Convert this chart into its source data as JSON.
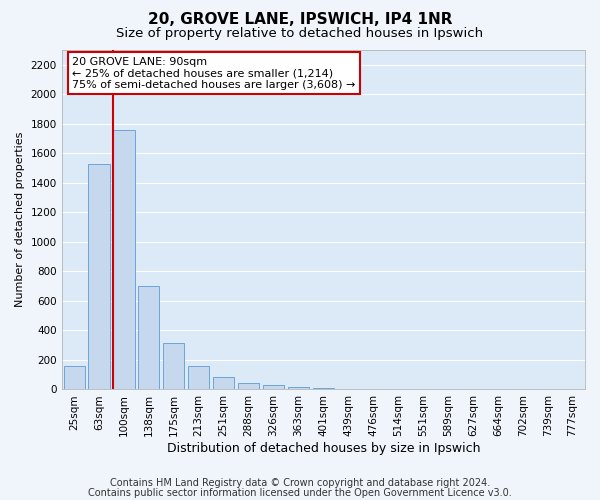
{
  "title1": "20, GROVE LANE, IPSWICH, IP4 1NR",
  "title2": "Size of property relative to detached houses in Ipswich",
  "xlabel": "Distribution of detached houses by size in Ipswich",
  "ylabel": "Number of detached properties",
  "categories": [
    "25sqm",
    "63sqm",
    "100sqm",
    "138sqm",
    "175sqm",
    "213sqm",
    "251sqm",
    "288sqm",
    "326sqm",
    "363sqm",
    "401sqm",
    "439sqm",
    "476sqm",
    "514sqm",
    "551sqm",
    "589sqm",
    "627sqm",
    "664sqm",
    "702sqm",
    "739sqm",
    "777sqm"
  ],
  "values": [
    160,
    1530,
    1760,
    700,
    315,
    160,
    85,
    45,
    30,
    18,
    12,
    5,
    3,
    2,
    1,
    1,
    1,
    0,
    0,
    0,
    0
  ],
  "bar_color": "#c5d8ee",
  "bar_edge_color": "#5b9bd5",
  "annotation_text": "20 GROVE LANE: 90sqm\n← 25% of detached houses are smaller (1,214)\n75% of semi-detached houses are larger (3,608) →",
  "annotation_box_color": "#ffffff",
  "annotation_border_color": "#cc0000",
  "red_line_color": "#cc0000",
  "footer1": "Contains HM Land Registry data © Crown copyright and database right 2024.",
  "footer2": "Contains public sector information licensed under the Open Government Licence v3.0.",
  "ylim": [
    0,
    2300
  ],
  "yticks": [
    0,
    200,
    400,
    600,
    800,
    1000,
    1200,
    1400,
    1600,
    1800,
    2000,
    2200
  ],
  "plot_bg_color": "#dce9f7",
  "fig_bg_color": "#f0f4fb",
  "grid_color": "#ffffff",
  "title1_fontsize": 11,
  "title2_fontsize": 9.5,
  "xlabel_fontsize": 9,
  "ylabel_fontsize": 8,
  "tick_fontsize": 7.5,
  "annotation_fontsize": 8,
  "footer_fontsize": 7,
  "red_line_bar_index": 2
}
